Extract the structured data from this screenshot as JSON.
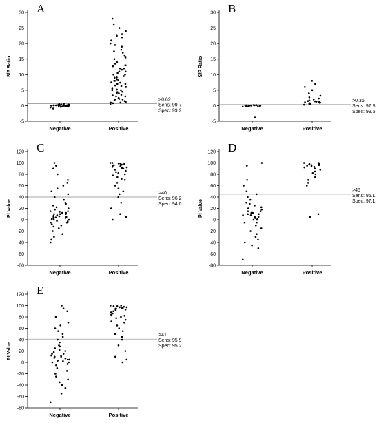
{
  "chart_data": [
    {
      "type": "scatter",
      "panel_label": "A",
      "ylabel": "S/P Ratio",
      "categories": [
        "Negative",
        "Positive"
      ],
      "ylim": [
        -5,
        30
      ],
      "yticks": [
        -5,
        0,
        5,
        10,
        15,
        20,
        25,
        30
      ],
      "cutoff": 0.62,
      "annotation": [
        ">0.62",
        "Sens: 99.7",
        "Spec: 99.2"
      ],
      "series": [
        {
          "values": [
            -0.6,
            -0.4,
            -0.3,
            -0.2,
            -0.1,
            0.0,
            0.0,
            0.1,
            0.1,
            0.2,
            0.2,
            0.3,
            0.3,
            0.4,
            0.5,
            0.6,
            -0.9,
            0.0,
            0.1,
            -0.1,
            0.2,
            0.0,
            0.3,
            -0.2,
            0.1,
            0.4,
            0.0,
            -0.3,
            0.2,
            0.1
          ]
        },
        {
          "values": [
            0.5,
            1,
            1,
            1.5,
            2,
            2,
            2.5,
            3,
            3,
            3.5,
            4,
            4,
            4.5,
            5,
            5,
            5.5,
            6,
            6,
            6.5,
            7,
            7,
            7.5,
            8,
            8,
            8.5,
            9,
            9.5,
            10,
            10,
            11,
            11,
            12,
            12,
            13,
            13,
            14,
            15,
            16,
            17,
            18,
            19,
            20,
            21,
            22,
            23,
            24,
            26,
            28,
            0.8,
            1.2,
            1.8,
            2.2,
            3.3,
            4.4,
            5.2,
            6.3,
            7.4,
            8.2,
            9.1,
            10.5,
            11.6,
            12.7,
            13.5,
            15.5,
            17.5,
            19.5,
            22.5,
            25
          ]
        }
      ]
    },
    {
      "type": "scatter",
      "panel_label": "B",
      "ylabel": "S/P Ratio",
      "categories": [
        "Negative",
        "Positive"
      ],
      "ylim": [
        -5,
        30
      ],
      "yticks": [
        -5,
        0,
        5,
        10,
        15,
        20,
        25,
        30
      ],
      "cutoff": 0.36,
      "annotation": [
        ">0.36",
        "Sens: 97.8",
        "Spec: 99.5"
      ],
      "series": [
        {
          "values": [
            -0.3,
            -0.2,
            -0.1,
            0.0,
            0.0,
            0.1,
            0.1,
            0.2,
            -0.1,
            0.0,
            0.1,
            -0.2,
            0.2,
            0.0,
            -3.8
          ]
        },
        {
          "values": [
            0.3,
            0.5,
            0.6,
            0.8,
            0.9,
            1.0,
            1.1,
            1.3,
            1.5,
            1.7,
            2.0,
            2.3,
            2.7,
            3.2,
            4.0,
            5.0,
            6.0,
            7.0,
            8.0,
            0.7,
            1.2,
            1.4
          ]
        }
      ]
    },
    {
      "type": "scatter",
      "panel_label": "C",
      "ylabel": "PI Value",
      "categories": [
        "Negative",
        "Positive"
      ],
      "ylim": [
        -80,
        120
      ],
      "yticks": [
        -80,
        -60,
        -40,
        -20,
        0,
        20,
        40,
        60,
        80,
        100,
        120
      ],
      "cutoff": 40,
      "annotation": [
        ">40",
        "Sens: 96.2",
        "Spec: 94.0"
      ],
      "series": [
        {
          "values": [
            -40,
            -35,
            -30,
            -25,
            -20,
            -15,
            -12,
            -10,
            -8,
            -5,
            -3,
            0,
            2,
            4,
            5,
            6,
            8,
            10,
            10,
            12,
            14,
            15,
            18,
            20,
            22,
            25,
            28,
            30,
            35,
            40,
            45,
            50,
            55,
            60,
            65,
            70,
            80,
            90,
            95,
            100,
            0,
            5,
            -5,
            10,
            15,
            3,
            7,
            -2,
            12,
            1
          ]
        },
        {
          "values": [
            100,
            100,
            99,
            98,
            97,
            96,
            95,
            94,
            93,
            92,
            90,
            88,
            86,
            84,
            82,
            80,
            78,
            75,
            72,
            70,
            65,
            60,
            55,
            50,
            45,
            40,
            30,
            20,
            10,
            5,
            0,
            97,
            99,
            95,
            91
          ]
        }
      ]
    },
    {
      "type": "scatter",
      "panel_label": "D",
      "ylabel": "PI Value",
      "categories": [
        "Negative",
        "Positive"
      ],
      "ylim": [
        -80,
        120
      ],
      "yticks": [
        -80,
        -60,
        -40,
        -20,
        0,
        20,
        40,
        60,
        80,
        100,
        120
      ],
      "cutoff": 45,
      "annotation": [
        ">45",
        "Sens: 95.1",
        "Spec: 97.1"
      ],
      "series": [
        {
          "values": [
            -70,
            -50,
            -45,
            -40,
            -35,
            -30,
            -25,
            -20,
            -15,
            -10,
            -5,
            0,
            2,
            5,
            8,
            10,
            12,
            15,
            18,
            20,
            22,
            25,
            28,
            30,
            35,
            40,
            45,
            50,
            60,
            70,
            95,
            100,
            5,
            10,
            15,
            0,
            -5,
            12,
            8,
            3
          ]
        },
        {
          "values": [
            100,
            100,
            99,
            98,
            97,
            96,
            95,
            94,
            92,
            90,
            88,
            85,
            82,
            80,
            75,
            70,
            65,
            60,
            10,
            5,
            98,
            96,
            93
          ]
        }
      ]
    },
    {
      "type": "scatter",
      "panel_label": "E",
      "ylabel": "PI Value",
      "categories": [
        "Negative",
        "Positive"
      ],
      "ylim": [
        -80,
        120
      ],
      "yticks": [
        -80,
        -60,
        -40,
        -20,
        0,
        20,
        40,
        60,
        80,
        100,
        120
      ],
      "cutoff": 41,
      "annotation": [
        ">41",
        "Sens: 95.9",
        "Spec: 95.2"
      ],
      "series": [
        {
          "values": [
            -70,
            -55,
            -45,
            -40,
            -35,
            -30,
            -25,
            -20,
            -15,
            -10,
            -5,
            0,
            3,
            5,
            8,
            10,
            12,
            15,
            18,
            20,
            22,
            25,
            28,
            30,
            35,
            40,
            45,
            50,
            55,
            60,
            65,
            70,
            80,
            90,
            95,
            100,
            0,
            5,
            10,
            15,
            -3,
            7,
            12,
            2
          ]
        },
        {
          "values": [
            100,
            100,
            99,
            98,
            97,
            96,
            95,
            94,
            93,
            92,
            90,
            88,
            86,
            84,
            82,
            80,
            78,
            75,
            72,
            70,
            65,
            60,
            55,
            50,
            45,
            40,
            30,
            20,
            10,
            5,
            0,
            97,
            99,
            95
          ]
        }
      ]
    }
  ]
}
